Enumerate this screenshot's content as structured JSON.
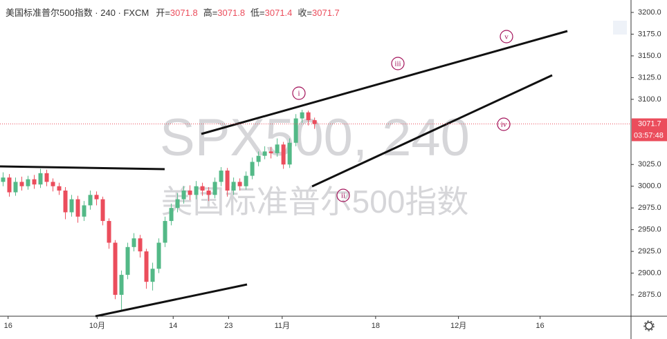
{
  "chart_data": {
    "type": "candlestick",
    "title": "美国标准普尔500指数 · 240 · FXCM",
    "ohlc_header": [
      {
        "label": "开=",
        "value": 3071.8
      },
      {
        "label": "高=",
        "value": 3071.8
      },
      {
        "label": "低=",
        "value": 3071.4
      },
      {
        "label": "收=",
        "value": 3071.7
      }
    ],
    "watermark": "SPX500, 240",
    "watermark_subtitle": "美国标准普尔500指数",
    "x": [
      0.5,
      1.5,
      2.5,
      3.5,
      4.5,
      5.5,
      6.5,
      7.5,
      8.5,
      9.5,
      10.5,
      11.5,
      12.5,
      13.5,
      14.5,
      15.5,
      16.5,
      17.5,
      18.5,
      19.5,
      20.5,
      21.5,
      22.5,
      23.5,
      24.5,
      25.5,
      26.5,
      27.5,
      28.5,
      29.5,
      30.5,
      31.5,
      32.5,
      33.5,
      34.5,
      35.5,
      36.5,
      37.5,
      38.5,
      39.5,
      40.5,
      41.5,
      42.5,
      43.5,
      44.5,
      45.5,
      46.5,
      47.5,
      48.5,
      49.5,
      50.5
    ],
    "open": [
      3005,
      3010,
      2993,
      3005,
      3000,
      3008,
      3002,
      3015,
      3005,
      3000,
      2995,
      2970,
      2985,
      2965,
      2978,
      2990,
      2985,
      2960,
      2935,
      2875,
      2898,
      2930,
      2940,
      2925,
      2890,
      2905,
      2935,
      2960,
      2975,
      2985,
      2995,
      2990,
      3000,
      2995,
      2990,
      3005,
      3018,
      2995,
      3005,
      3000,
      3012,
      3028,
      3035,
      3040,
      3038,
      3048,
      3025,
      3050,
      3078,
      3085,
      3076
    ],
    "high": [
      3016,
      3014,
      3010,
      3011,
      3012,
      3013,
      3020,
      3019,
      3009,
      3004,
      2999,
      2990,
      2989,
      2983,
      2995,
      2994,
      2988,
      2963,
      2938,
      2903,
      2935,
      2946,
      2944,
      2928,
      2912,
      2940,
      2965,
      2980,
      2992,
      3000,
      3001,
      3006,
      3004,
      2999,
      3010,
      3022,
      3021,
      3010,
      3009,
      3017,
      3033,
      3040,
      3046,
      3045,
      3055,
      3051,
      3055,
      3083,
      3088,
      3087,
      3079
    ],
    "low": [
      3000,
      2988,
      2989,
      2995,
      2996,
      2997,
      2998,
      3000,
      2994,
      2990,
      2962,
      2965,
      2958,
      2960,
      2973,
      2978,
      2955,
      2928,
      2870,
      2856,
      2893,
      2925,
      2918,
      2882,
      2880,
      2900,
      2930,
      2955,
      2970,
      2980,
      2984,
      2985,
      2989,
      2983,
      2986,
      3000,
      2988,
      2990,
      2995,
      2996,
      3008,
      3023,
      3031,
      3032,
      3034,
      3020,
      3021,
      3046,
      3073,
      3070,
      3066
    ],
    "close": [
      3010,
      2993,
      3005,
      3000,
      3008,
      3002,
      3015,
      3005,
      3000,
      2995,
      2970,
      2985,
      2965,
      2978,
      2990,
      2985,
      2960,
      2935,
      2875,
      2898,
      2930,
      2940,
      2925,
      2890,
      2905,
      2935,
      2960,
      2975,
      2985,
      2995,
      2990,
      3000,
      2995,
      2990,
      3005,
      3018,
      2995,
      3005,
      3000,
      3012,
      3028,
      3035,
      3040,
      3038,
      3048,
      3025,
      3050,
      3078,
      3085,
      3076,
      3071.7
    ],
    "up_color": "#53b987",
    "down_color": "#eb4d5c",
    "xlim": [
      0,
      101.3
    ],
    "xticks": [
      {
        "value": 1.3,
        "label": "16"
      },
      {
        "value": 15.6,
        "label": "10月"
      },
      {
        "value": 27.8,
        "label": "14"
      },
      {
        "value": 36.7,
        "label": "23"
      },
      {
        "value": 45.3,
        "label": "11月"
      },
      {
        "value": 60.3,
        "label": "18"
      },
      {
        "value": 73.6,
        "label": "12月"
      },
      {
        "value": 86.7,
        "label": "16"
      }
    ],
    "ylim": [
      2850.4,
      3214.3
    ],
    "yticks": [
      {
        "value": 3200,
        "label": "3200.0"
      },
      {
        "value": 3175,
        "label": "3175.0"
      },
      {
        "value": 3150,
        "label": "3150.0"
      },
      {
        "value": 3125,
        "label": "3125.0"
      },
      {
        "value": 3100,
        "label": "3100.0"
      },
      {
        "value": 3025,
        "label": "3025.0"
      },
      {
        "value": 3000,
        "label": "3000.0"
      },
      {
        "value": 2975,
        "label": "2975.0"
      },
      {
        "value": 2950,
        "label": "2950.0"
      },
      {
        "value": 2925,
        "label": "2925.0"
      },
      {
        "value": 2900,
        "label": "2900.0"
      },
      {
        "value": 2875,
        "label": "2875.0"
      }
    ],
    "last_price": {
      "value": 3071.7,
      "label": "3071.7"
    },
    "countdown": "03:57:48",
    "annotations": [
      "i",
      "ii",
      "iii",
      "iv",
      "v"
    ]
  }
}
